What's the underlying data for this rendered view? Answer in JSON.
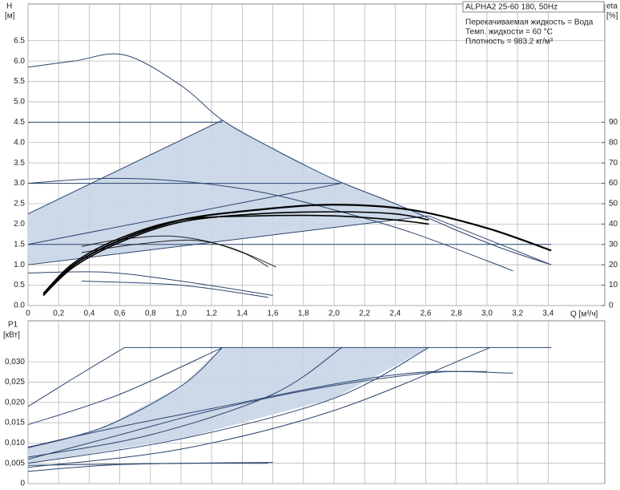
{
  "chart_data": [
    {
      "type": "line",
      "title": "ALPHA2 25-60 180, 50Hz",
      "annotations": [
        "Перекачиваемая жидкость = Вода",
        "Темп. жидкости = 60 °C",
        "Плотность = 983.2 кг/м³"
      ],
      "ylabel": "H",
      "ylabel_unit": "[м]",
      "y2label": "eta",
      "y2label_unit": "[%]",
      "xlabel": "Q [м³/ч]",
      "grid": true,
      "xlim": [
        0,
        3.77
      ],
      "xticks": [
        0,
        {
          "value": 0.2,
          "label": "0,2"
        },
        {
          "value": 0.4,
          "label": "0,4"
        },
        {
          "value": 0.6,
          "label": "0,6"
        },
        {
          "value": 0.8,
          "label": "0,8"
        },
        {
          "value": 1.0,
          "label": "1,0"
        },
        {
          "value": 1.2,
          "label": "1,2"
        },
        {
          "value": 1.4,
          "label": "1,4"
        },
        {
          "value": 1.6,
          "label": "1,6"
        },
        {
          "value": 1.8,
          "label": "1,8"
        },
        {
          "value": 2.0,
          "label": "2,0"
        },
        {
          "value": 2.2,
          "label": "2,2"
        },
        {
          "value": 2.4,
          "label": "2,4"
        },
        {
          "value": 2.6,
          "label": "2,6"
        },
        {
          "value": 2.8,
          "label": "2,8"
        },
        {
          "value": 3.0,
          "label": "3,0"
        },
        {
          "value": 3.2,
          "label": "3,2"
        },
        {
          "value": 3.4,
          "label": "3,4"
        }
      ],
      "ylim": [
        0,
        7.4
      ],
      "yticks": [
        {
          "value": 0,
          "label": "0.0"
        },
        0.5,
        {
          "value": 1,
          "label": "1.0"
        },
        1.5,
        {
          "value": 2,
          "label": "2.0"
        },
        2.5,
        {
          "value": 3,
          "label": "3.0"
        },
        3.5,
        {
          "value": 4,
          "label": "4.0"
        },
        4.5,
        {
          "value": 5,
          "label": "5.0"
        },
        5.5,
        {
          "value": 6,
          "label": "6.0"
        },
        6.5
      ],
      "y2lim": [
        0,
        148
      ],
      "y2ticks": [
        0,
        10,
        20,
        30,
        40,
        50,
        60,
        70,
        80,
        90
      ],
      "series": [
        {
          "fill": "#c8d5e5",
          "x": [
            0,
            0,
            1.27,
            1.6,
            2.0,
            2.4,
            2.62,
            0
          ],
          "values": [
            1.0,
            2.25,
            4.55,
            3.85,
            3.1,
            2.5,
            2.2,
            1.0
          ]
        },
        {
          "color": "#2b4470",
          "x": [
            0,
            0.3,
            0.63,
            1.0,
            1.27,
            1.6,
            2.0,
            2.4,
            2.8,
            3.1,
            3.42
          ],
          "values": [
            5.85,
            6.0,
            6.15,
            5.4,
            4.55,
            3.85,
            3.1,
            2.5,
            1.85,
            1.4,
            1.0
          ]
        },
        {
          "color": "#2b4470",
          "x": [
            0,
            1.27
          ],
          "values": [
            4.5,
            4.5
          ]
        },
        {
          "color": "#2b4470",
          "x": [
            0,
            1.27
          ],
          "values": [
            2.25,
            4.55
          ]
        },
        {
          "color": "#2b4470",
          "x": [
            0,
            0.5,
            1.0,
            1.5,
            2.0,
            2.5,
            3.0,
            3.17
          ],
          "values": [
            3.0,
            3.12,
            3.05,
            2.8,
            2.35,
            1.8,
            1.1,
            0.85
          ]
        },
        {
          "color": "#2b4470",
          "x": [
            0,
            2.05
          ],
          "values": [
            3.0,
            3.0
          ]
        },
        {
          "color": "#2b4470",
          "x": [
            0,
            2.05
          ],
          "values": [
            1.5,
            3.0
          ]
        },
        {
          "color": "#2b4470",
          "x": [
            0,
            3.42
          ],
          "values": [
            1.5,
            1.5
          ]
        },
        {
          "color": "#2b4470",
          "x": [
            0,
            2.62
          ],
          "values": [
            1.0,
            2.2
          ]
        },
        {
          "color": "#2b4470",
          "x": [
            2.62,
            3.42
          ],
          "values": [
            2.2,
            1.0
          ]
        },
        {
          "color": "#222222",
          "x": [
            0.35,
            0.6,
            0.95,
            1.3,
            1.62
          ],
          "values": [
            1.45,
            1.62,
            1.7,
            1.45,
            0.95
          ]
        },
        {
          "color": "#222222",
          "x": [
            0.35,
            0.7,
            1.1,
            1.4,
            1.57
          ],
          "values": [
            1.3,
            1.5,
            1.6,
            1.3,
            0.95
          ]
        },
        {
          "color": "#2b4470",
          "x": [
            0,
            0.5,
            1.0,
            1.6
          ],
          "values": [
            0.8,
            0.82,
            0.6,
            0.25
          ]
        },
        {
          "color": "#2b4470",
          "x": [
            0.35,
            1.0,
            1.57
          ],
          "values": [
            0.6,
            0.5,
            0.2
          ]
        },
        {
          "color": "#000000",
          "width": 2.2,
          "axis": "y2",
          "x": [
            0.1,
            0.3,
            0.6,
            1.0,
            1.5,
            2.0,
            2.5,
            3.0,
            3.42
          ],
          "values": [
            5,
            20,
            32,
            42,
            47,
            49.5,
            47,
            38,
            27
          ]
        },
        {
          "color": "#000000",
          "width": 1.6,
          "axis": "y2",
          "x": [
            0.1,
            0.3,
            0.6,
            1.0,
            1.5,
            2.0,
            2.4,
            2.62
          ],
          "values": [
            5,
            19,
            31,
            41,
            45,
            46,
            45,
            42
          ]
        },
        {
          "color": "#000000",
          "width": 1.6,
          "axis": "y2",
          "x": [
            0.1,
            0.3,
            0.6,
            1.0,
            1.5,
            2.0,
            2.4,
            2.62
          ],
          "values": [
            6,
            21,
            33,
            42,
            44,
            44,
            42,
            40
          ]
        }
      ]
    },
    {
      "type": "line",
      "ylabel": "P1",
      "ylabel_unit": "[кВт]",
      "grid": true,
      "xlim": [
        0,
        3.77
      ],
      "ylim": [
        0,
        0.0401
      ],
      "yticks": [
        0,
        {
          "value": 0.005,
          "label": "0,005"
        },
        {
          "value": 0.01,
          "label": "0,010"
        },
        {
          "value": 0.015,
          "label": "0,015"
        },
        {
          "value": 0.02,
          "label": "0,020"
        },
        {
          "value": 0.025,
          "label": "0,025"
        },
        {
          "value": 0.03,
          "label": "0,030"
        }
      ],
      "series": [
        {
          "fill": "#c8d5e5",
          "x": [
            0,
            0,
            0.5,
            1.0,
            1.27,
            2.62,
            2.0,
            1.0,
            0
          ],
          "values": [
            0.0045,
            0.0088,
            0.014,
            0.024,
            0.0335,
            0.0335,
            0.021,
            0.011,
            0.005
          ]
        },
        {
          "color": "#2b4470",
          "x": [
            0.63,
            3.42
          ],
          "values": [
            0.0335,
            0.0335
          ]
        },
        {
          "color": "#2b4470",
          "x": [
            0,
            0.3,
            0.63
          ],
          "values": [
            0.019,
            0.026,
            0.0335
          ]
        },
        {
          "color": "#2b4470",
          "x": [
            0,
            0.6,
            1.27
          ],
          "values": [
            0.0145,
            0.022,
            0.0335
          ]
        },
        {
          "color": "#2b4470",
          "x": [
            0,
            0.5,
            1.0,
            1.27
          ],
          "values": [
            0.0088,
            0.014,
            0.024,
            0.0335
          ]
        },
        {
          "color": "#2b4470",
          "x": [
            0,
            0.8,
            1.6,
            2.05
          ],
          "values": [
            0.0065,
            0.012,
            0.022,
            0.0335
          ]
        },
        {
          "color": "#2b4470",
          "x": [
            0,
            1.0,
            2.0,
            2.62
          ],
          "values": [
            0.005,
            0.011,
            0.021,
            0.0335
          ]
        },
        {
          "color": "#2b4470",
          "x": [
            0,
            1.0,
            2.0,
            3.02
          ],
          "values": [
            0.004,
            0.0085,
            0.018,
            0.0335
          ]
        },
        {
          "color": "#2b4470",
          "x": [
            0,
            0.6,
            1.27,
            2.0,
            2.6,
            3.17
          ],
          "values": [
            0.009,
            0.014,
            0.019,
            0.0245,
            0.0275,
            0.0272
          ]
        },
        {
          "color": "#2b4470",
          "x": [
            0,
            0.6,
            1.2,
            1.9,
            2.6,
            3.0
          ],
          "values": [
            0.006,
            0.012,
            0.018,
            0.0235,
            0.0272,
            0.0276
          ]
        },
        {
          "color": "#2b4470",
          "x": [
            0,
            0.5,
            1.0,
            1.6
          ],
          "values": [
            0.003,
            0.0045,
            0.005,
            0.0052
          ]
        },
        {
          "color": "#2b4470",
          "x": [
            0,
            0.6,
            1.0,
            1.57
          ],
          "values": [
            0.0045,
            0.0048,
            0.005,
            0.005
          ]
        }
      ]
    }
  ]
}
